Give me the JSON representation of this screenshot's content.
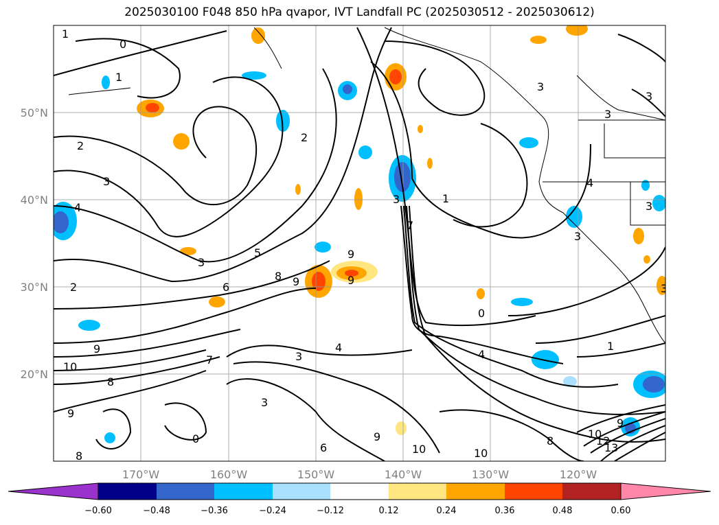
{
  "title": "2025030100 F048 850 hPa qvapor, IVT Landfall PC (2025030512 - 2025030612)",
  "map": {
    "lon_range": [
      -180,
      -110
    ],
    "lat_range": [
      10,
      60
    ],
    "lon_ticks": [
      "170°W",
      "160°W",
      "150°W",
      "140°W",
      "130°W",
      "120°W"
    ],
    "lat_ticks": [
      "50°N",
      "40°N",
      "30°N",
      "20°N"
    ],
    "grid": true,
    "coastlines": true,
    "contour_labels": [
      "1",
      "0",
      "1",
      "2",
      "3",
      "4",
      "3",
      "2",
      "10",
      "9",
      "8",
      "9",
      "8",
      "0",
      "7",
      "3",
      "5",
      "6",
      "8",
      "9",
      "9",
      "9",
      "7",
      "3",
      "4",
      "3",
      "6",
      "9",
      "10",
      "10",
      "2",
      "3",
      "1",
      "0",
      "4",
      "1",
      "8",
      "9",
      "10",
      "12",
      "13",
      "3",
      "4",
      "3",
      "3",
      "3",
      "3"
    ]
  },
  "colorbar": {
    "tick_labels": [
      "−0.60",
      "−0.48",
      "−0.36",
      "−0.24",
      "−0.12",
      "0.12",
      "0.24",
      "0.36",
      "0.48",
      "0.60"
    ],
    "colors": [
      "#9933cc",
      "#00008b",
      "#3366cc",
      "#00bfff",
      "#aadfff",
      "#ffffff",
      "#ffe680",
      "#ffa500",
      "#ff4500",
      "#b22222",
      "#ff88aa"
    ]
  }
}
